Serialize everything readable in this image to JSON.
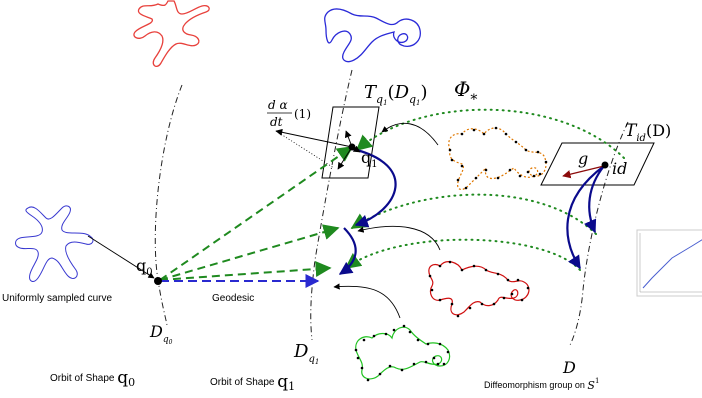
{
  "labels": {
    "tangent_q1": {
      "main": "T",
      "sub_base": "q",
      "sub_num": "1",
      "paren_open": "(",
      "D": "D",
      "inner_sub": "q",
      "inner_num": "1",
      "paren_close": ")"
    },
    "phi": {
      "main": "Φ",
      "sub": "*"
    },
    "tangent_id": {
      "main": "T",
      "sub": "id",
      "paren": "(D)"
    },
    "derivative": {
      "numerator": "d α",
      "denominator": "dt",
      "arg": "(1)"
    },
    "q1_point": {
      "base": "q",
      "sub": "1"
    },
    "q0_point": {
      "base": "q",
      "sub": "0"
    },
    "g_label": "g",
    "id_label": "id",
    "uniformly_sampled": "Uniformly sampled curve",
    "geodesic": "Geodesic",
    "orbit_q0_symbol": {
      "base": "D",
      "sub": "q",
      "subsub": "0"
    },
    "orbit_q1_symbol": {
      "base": "D",
      "sub": "q",
      "subsub": "1"
    },
    "diffeo_symbol": "D",
    "orbit_q0_caption": {
      "text": "Orbit of Shape ",
      "sym": "q",
      "sub": "0"
    },
    "orbit_q1_caption": {
      "text": "Orbit of Shape ",
      "sym": "q",
      "sub": "1"
    },
    "diffeo_caption": {
      "text": "Diffeomorphism group on ",
      "sym": "S",
      "sup": "1"
    }
  },
  "colors": {
    "red_shape": "#e8413c",
    "blue_shape": "#2b2bd8",
    "green_arrow": "#1f8a1f",
    "navy_arrow": "#0a0a8c",
    "dashed_blue": "#2a2ad0",
    "orange_dots": "#e07800",
    "red_dots": "#d01010",
    "green_dots": "#22c322",
    "dark_red_arrow": "#8b0a0a",
    "inset_line": "#4a5fd0"
  }
}
